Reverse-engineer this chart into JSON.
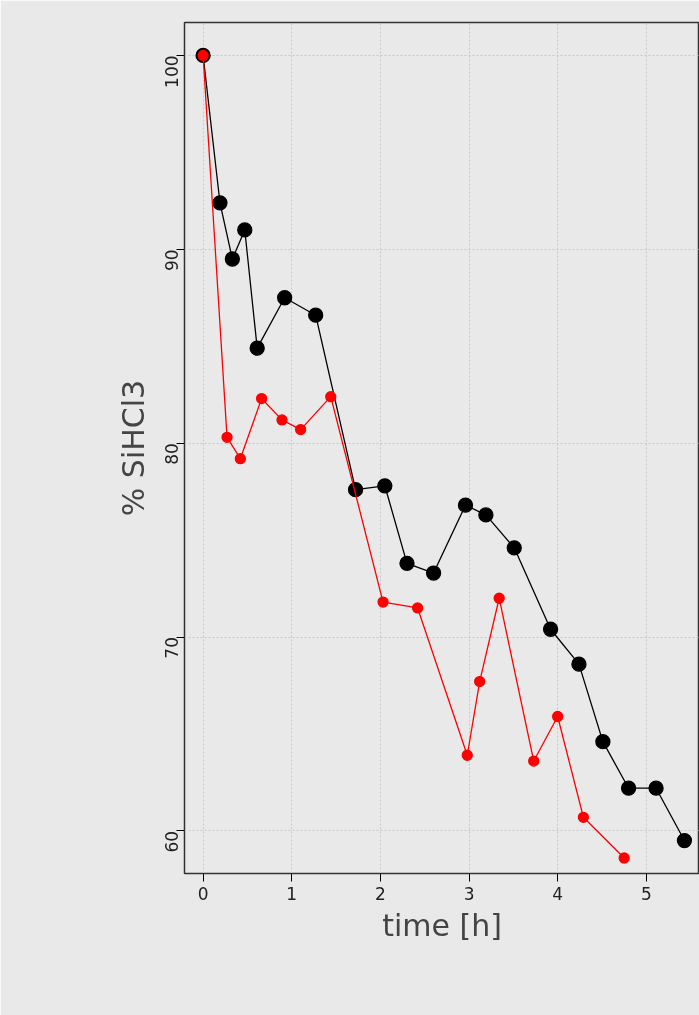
{
  "chart_data": {
    "type": "line",
    "xlabel": "time [h]",
    "ylabel": "% SiHCl3",
    "xlim": [
      -0.21,
      5.6
    ],
    "ylim": [
      57.8,
      101.7
    ],
    "xticks": [
      0,
      1,
      2,
      3,
      4,
      5
    ],
    "yticks": [
      60,
      70,
      80,
      90,
      100
    ],
    "grid": true,
    "marker": "circle",
    "line_style": "solid",
    "series": [
      {
        "color": "#000000",
        "x": [
          0,
          0.19,
          0.33,
          0.47,
          0.61,
          0.92,
          1.27,
          1.72,
          2.05,
          2.3,
          2.6,
          2.96,
          3.19,
          3.51,
          3.92,
          4.24,
          4.51,
          4.8,
          5.11,
          5.43
        ],
        "values": [
          100,
          92.4,
          89.5,
          91.0,
          84.9,
          87.5,
          86.6,
          77.6,
          77.8,
          73.8,
          73.3,
          76.8,
          76.3,
          74.6,
          70.4,
          68.6,
          64.6,
          62.2,
          62.2,
          59.5
        ]
      },
      {
        "color": "#ff0000",
        "x": [
          0,
          0.27,
          0.42,
          0.66,
          0.89,
          1.1,
          1.44,
          2.03,
          2.42,
          2.98,
          3.12,
          3.34,
          3.73,
          4.0,
          4.29,
          4.75
        ],
        "values": [
          100,
          80.3,
          79.2,
          82.3,
          81.2,
          80.7,
          82.4,
          71.8,
          71.5,
          63.9,
          67.7,
          72.0,
          63.6,
          65.9,
          60.7,
          58.6
        ]
      }
    ]
  }
}
